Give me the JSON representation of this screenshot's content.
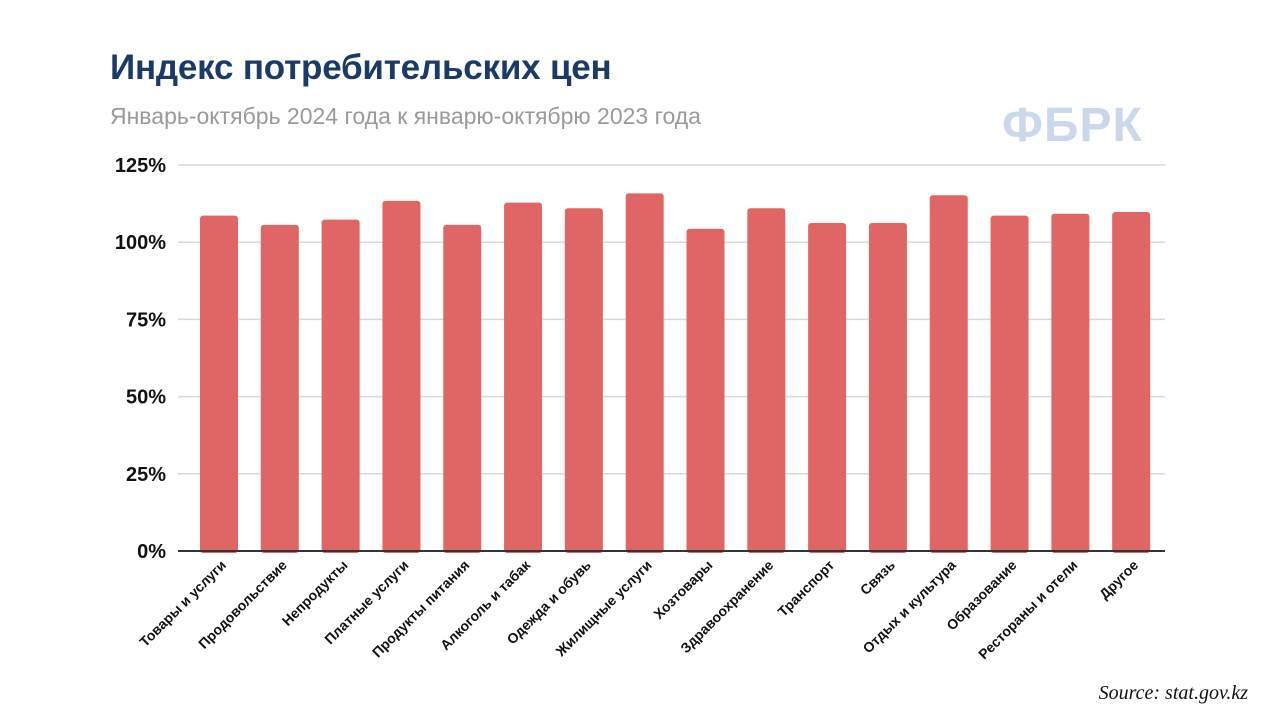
{
  "header": {
    "title": "Индекс потребительских цен",
    "subtitle": "Январь-октябрь 2024 года к январю-октябрю 2023 года",
    "logo": "ФБРК"
  },
  "footer": {
    "source": "Source: stat.gov.kz"
  },
  "colors": {
    "bar": "#e06666",
    "title": "#1a3b66",
    "subtitle": "#9a9a9a",
    "logo": "#cbd7ea",
    "grid": "#d9d9d9",
    "axis": "#333333"
  },
  "chart_data": {
    "type": "bar",
    "title": "Индекс потребительских цен",
    "subtitle": "Январь-октябрь 2024 года к январю-октябрю 2023 года",
    "xlabel": "",
    "ylabel": "",
    "ylim": [
      0,
      125
    ],
    "yticks": [
      0,
      25,
      50,
      75,
      100,
      125
    ],
    "ytick_labels": [
      "0%",
      "25%",
      "50%",
      "75%",
      "100%",
      "125%"
    ],
    "grid": true,
    "legend": "none",
    "categories": [
      "Товары и услуги",
      "Продовольствие",
      "Непродукты",
      "Платные услуги",
      "Продукты питания",
      "Алкоголь и табак",
      "Одежда и обувь",
      "Жилищные услуги",
      "Хозтовары",
      "Здравоохранение",
      "Транспорт",
      "Связь",
      "Отдых и культура",
      "Образование",
      "Рестораны и отели",
      "Другое"
    ],
    "values": [
      108.6,
      105.6,
      107.3,
      113.4,
      105.6,
      112.8,
      111.0,
      115.8,
      104.3,
      111.0,
      106.2,
      106.2,
      115.2,
      108.6,
      109.2,
      109.8
    ]
  }
}
